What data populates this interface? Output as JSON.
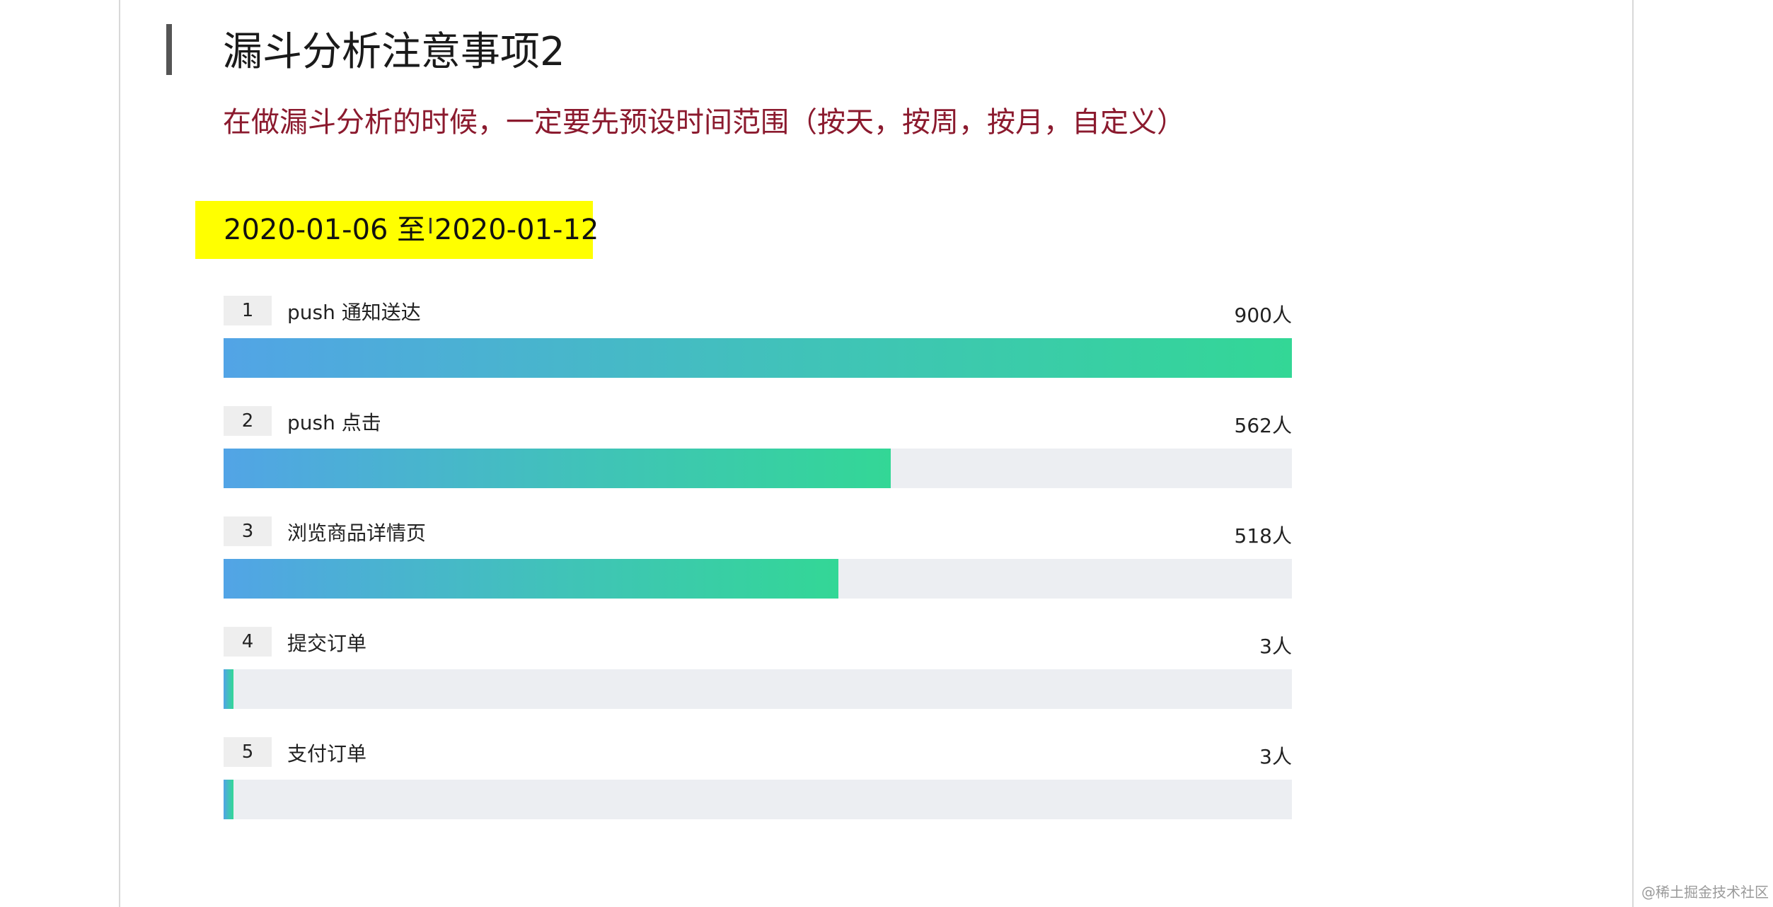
{
  "slide": {
    "title": "漏斗分析注意事项2",
    "subtitle": "在做漏斗分析的时候，一定要先预设时间范围（按天，按周，按月，自定义）",
    "date_range": "2020-01-06 至 2020-01-12",
    "cursor_glyph": "I"
  },
  "chart_data": {
    "type": "bar",
    "orientation": "horizontal",
    "categories": [
      "push 通知送达",
      "push 点击",
      "浏览商品详情页",
      "提交订单",
      "支付订单"
    ],
    "step_numbers": [
      "1",
      "2",
      "3",
      "4",
      "5"
    ],
    "values": [
      900,
      562,
      518,
      3,
      3
    ],
    "value_labels": [
      "900人",
      "562人",
      "518人",
      "3人",
      "3人"
    ],
    "xlim": [
      0,
      900
    ],
    "grid": false,
    "colors": {
      "bar_start": "#52a4e6",
      "bar_end": "#33d796",
      "track": "#eceef2"
    }
  },
  "watermark": "@稀土掘金技术社区"
}
